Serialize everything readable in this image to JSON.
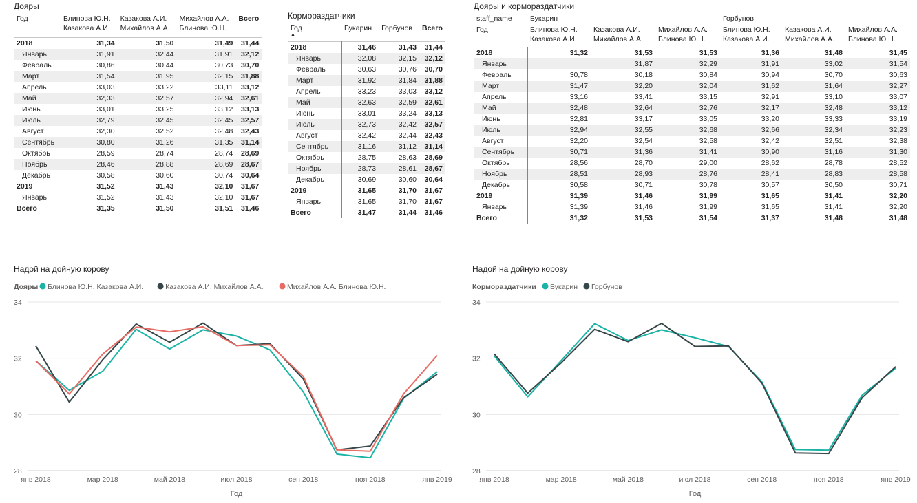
{
  "m1": {
    "title": "Дояры",
    "col_header": "Год",
    "columns": [
      "Блинова Ю.Н.\nКазакова А.И.",
      "Казакова А.И.\nМихайлов А.А.",
      "Михайлов А.А.\nБлинова Ю.Н."
    ],
    "total_label": "Всего",
    "rows": [
      {
        "label": "2018",
        "level": 0,
        "values": [
          "31,34",
          "31,50",
          "31,49"
        ],
        "total": "31,44"
      },
      {
        "label": "Январь",
        "level": 1,
        "values": [
          "31,91",
          "32,44",
          "31,91"
        ],
        "total": "32,12"
      },
      {
        "label": "Февраль",
        "level": 1,
        "values": [
          "30,86",
          "30,44",
          "30,73"
        ],
        "total": "30,70"
      },
      {
        "label": "Март",
        "level": 1,
        "values": [
          "31,54",
          "31,95",
          "32,15"
        ],
        "total": "31,88"
      },
      {
        "label": "Апрель",
        "level": 1,
        "values": [
          "33,03",
          "33,22",
          "33,11"
        ],
        "total": "33,12"
      },
      {
        "label": "Май",
        "level": 1,
        "values": [
          "32,33",
          "32,57",
          "32,94"
        ],
        "total": "32,61"
      },
      {
        "label": "Июнь",
        "level": 1,
        "values": [
          "33,01",
          "33,25",
          "33,12"
        ],
        "total": "33,13"
      },
      {
        "label": "Июль",
        "level": 1,
        "values": [
          "32,79",
          "32,45",
          "32,45"
        ],
        "total": "32,57"
      },
      {
        "label": "Август",
        "level": 1,
        "values": [
          "32,30",
          "32,52",
          "32,48"
        ],
        "total": "32,43"
      },
      {
        "label": "Сентябрь",
        "level": 1,
        "values": [
          "30,80",
          "31,26",
          "31,35"
        ],
        "total": "31,14"
      },
      {
        "label": "Октябрь",
        "level": 1,
        "values": [
          "28,59",
          "28,74",
          "28,74"
        ],
        "total": "28,69"
      },
      {
        "label": "Ноябрь",
        "level": 1,
        "values": [
          "28,46",
          "28,88",
          "28,69"
        ],
        "total": "28,67"
      },
      {
        "label": "Декабрь",
        "level": 1,
        "values": [
          "30,58",
          "30,60",
          "30,74"
        ],
        "total": "30,64"
      },
      {
        "label": "2019",
        "level": 0,
        "values": [
          "31,52",
          "31,43",
          "32,10"
        ],
        "total": "31,67"
      },
      {
        "label": "Январь",
        "level": 1,
        "values": [
          "31,52",
          "31,43",
          "32,10"
        ],
        "total": "31,67"
      },
      {
        "label": "Всего",
        "level": 2,
        "values": [
          "31,35",
          "31,50",
          "31,51"
        ],
        "total": "31,46"
      }
    ]
  },
  "m2": {
    "title": "Кормораздатчики",
    "col_header": "Год",
    "sort_indicator": "▲",
    "columns": [
      "Букарин",
      "Горбунов"
    ],
    "total_label": "Всего",
    "rows": [
      {
        "label": "2018",
        "level": 0,
        "values": [
          "31,46",
          "31,43"
        ],
        "total": "31,44"
      },
      {
        "label": "Январь",
        "level": 1,
        "values": [
          "32,08",
          "32,15"
        ],
        "total": "32,12"
      },
      {
        "label": "Февраль",
        "level": 1,
        "values": [
          "30,63",
          "30,76"
        ],
        "total": "30,70"
      },
      {
        "label": "Март",
        "level": 1,
        "values": [
          "31,92",
          "31,84"
        ],
        "total": "31,88"
      },
      {
        "label": "Апрель",
        "level": 1,
        "values": [
          "33,23",
          "33,03"
        ],
        "total": "33,12"
      },
      {
        "label": "Май",
        "level": 1,
        "values": [
          "32,63",
          "32,59"
        ],
        "total": "32,61"
      },
      {
        "label": "Июнь",
        "level": 1,
        "values": [
          "33,01",
          "33,24"
        ],
        "total": "33,13"
      },
      {
        "label": "Июль",
        "level": 1,
        "values": [
          "32,73",
          "32,42"
        ],
        "total": "32,57"
      },
      {
        "label": "Август",
        "level": 1,
        "values": [
          "32,42",
          "32,44"
        ],
        "total": "32,43"
      },
      {
        "label": "Сентябрь",
        "level": 1,
        "values": [
          "31,16",
          "31,12"
        ],
        "total": "31,14"
      },
      {
        "label": "Октябрь",
        "level": 1,
        "values": [
          "28,75",
          "28,63"
        ],
        "total": "28,69"
      },
      {
        "label": "Ноябрь",
        "level": 1,
        "values": [
          "28,73",
          "28,61"
        ],
        "total": "28,67"
      },
      {
        "label": "Декабрь",
        "level": 1,
        "values": [
          "30,69",
          "30,60"
        ],
        "total": "30,64"
      },
      {
        "label": "2019",
        "level": 0,
        "values": [
          "31,65",
          "31,70"
        ],
        "total": "31,67"
      },
      {
        "label": "Январь",
        "level": 1,
        "values": [
          "31,65",
          "31,70"
        ],
        "total": "31,67"
      },
      {
        "label": "Всего",
        "level": 2,
        "values": [
          "31,47",
          "31,44"
        ],
        "total": "31,46"
      }
    ]
  },
  "m3": {
    "title": "Дояры и кормораздатчики",
    "row_header_top": "staff_name",
    "col_header": "Год",
    "group1": "Букарин",
    "group2": "Горбунов",
    "columns": [
      "Блинова Ю.Н.\nКазакова А.И.",
      "Казакова А.И.\nМихайлов А.А.",
      "Михайлов А.А.\nБлинова Ю.Н.",
      "Блинова Ю.Н.\nКазакова А.И.",
      "Казакова А.И.\nМихайлов А.А.",
      "Михайлов А.А.\nБлинова Ю.Н."
    ],
    "rows": [
      {
        "label": "2018",
        "level": 0,
        "values": [
          "31,32",
          "31,53",
          "31,53",
          "31,36",
          "31,48",
          "31,45"
        ]
      },
      {
        "label": "Январь",
        "level": 1,
        "values": [
          "",
          "31,87",
          "32,29",
          "31,91",
          "33,02",
          "31,54"
        ]
      },
      {
        "label": "Февраль",
        "level": 1,
        "values": [
          "30,78",
          "30,18",
          "30,84",
          "30,94",
          "30,70",
          "30,63"
        ]
      },
      {
        "label": "Март",
        "level": 1,
        "values": [
          "31,47",
          "32,20",
          "32,04",
          "31,62",
          "31,64",
          "32,27"
        ]
      },
      {
        "label": "Апрель",
        "level": 1,
        "values": [
          "33,16",
          "33,41",
          "33,15",
          "32,91",
          "33,10",
          "33,07"
        ]
      },
      {
        "label": "Май",
        "level": 1,
        "values": [
          "32,48",
          "32,64",
          "32,76",
          "32,17",
          "32,48",
          "33,12"
        ]
      },
      {
        "label": "Июнь",
        "level": 1,
        "values": [
          "32,81",
          "33,17",
          "33,05",
          "33,20",
          "33,33",
          "33,19"
        ]
      },
      {
        "label": "Июль",
        "level": 1,
        "values": [
          "32,94",
          "32,55",
          "32,68",
          "32,66",
          "32,34",
          "32,23"
        ]
      },
      {
        "label": "Август",
        "level": 1,
        "values": [
          "32,20",
          "32,54",
          "32,58",
          "32,42",
          "32,51",
          "32,38"
        ]
      },
      {
        "label": "Сентябрь",
        "level": 1,
        "values": [
          "30,71",
          "31,36",
          "31,41",
          "30,90",
          "31,16",
          "31,30"
        ]
      },
      {
        "label": "Октябрь",
        "level": 1,
        "values": [
          "28,56",
          "28,70",
          "29,00",
          "28,62",
          "28,78",
          "28,52"
        ]
      },
      {
        "label": "Ноябрь",
        "level": 1,
        "values": [
          "28,51",
          "28,93",
          "28,76",
          "28,41",
          "28,83",
          "28,58"
        ]
      },
      {
        "label": "Декабрь",
        "level": 1,
        "values": [
          "30,58",
          "30,71",
          "30,78",
          "30,57",
          "30,50",
          "30,71"
        ]
      },
      {
        "label": "2019",
        "level": 0,
        "values": [
          "31,39",
          "31,46",
          "31,99",
          "31,65",
          "31,41",
          "32,20"
        ]
      },
      {
        "label": "Январь",
        "level": 1,
        "values": [
          "31,39",
          "31,46",
          "31,99",
          "31,65",
          "31,41",
          "32,20"
        ]
      },
      {
        "label": "Всего",
        "level": 2,
        "values": [
          "31,32",
          "31,53",
          "31,54",
          "31,37",
          "31,48",
          "31,48"
        ]
      }
    ]
  },
  "chart_data": [
    {
      "type": "line",
      "title": "Надой на дойную корову",
      "legend_title": "Дояры",
      "xlabel": "Год",
      "ylabel": "",
      "ylim": [
        28,
        34
      ],
      "yticks": [
        28,
        30,
        32,
        34
      ],
      "x": [
        "янв 2018",
        "фев 2018",
        "мар 2018",
        "апр 2018",
        "май 2018",
        "июн 2018",
        "июл 2018",
        "авг 2018",
        "сен 2018",
        "окт 2018",
        "ноя 2018",
        "дек 2018",
        "янв 2019"
      ],
      "xtick_labels": [
        "янв 2018",
        "мар 2018",
        "май 2018",
        "июл 2018",
        "сен 2018",
        "ноя 2018",
        "янв 2019"
      ],
      "grid": true,
      "legend_position": "top-left",
      "series": [
        {
          "name": "Блинова Ю.Н. Казакова А.И.",
          "color": "#1ab3a6",
          "values": [
            31.91,
            30.86,
            31.54,
            33.03,
            32.33,
            33.01,
            32.79,
            32.3,
            30.8,
            28.59,
            28.46,
            30.58,
            31.52
          ]
        },
        {
          "name": "Казакова А.И. Михайлов А.А.",
          "color": "#374649",
          "values": [
            32.44,
            30.44,
            31.95,
            33.22,
            32.57,
            33.25,
            32.45,
            32.52,
            31.26,
            28.74,
            28.88,
            30.6,
            31.43
          ]
        },
        {
          "name": "Михайлов А.А. Блинова Ю.Н.",
          "color": "#e66c64",
          "values": [
            31.91,
            30.73,
            32.15,
            33.11,
            32.94,
            33.12,
            32.45,
            32.48,
            31.35,
            28.74,
            28.69,
            30.74,
            32.1
          ]
        }
      ]
    },
    {
      "type": "line",
      "title": "Надой на дойную корову",
      "legend_title": "Кормораздатчики",
      "xlabel": "Год",
      "ylabel": "",
      "ylim": [
        28,
        34
      ],
      "yticks": [
        28,
        30,
        32,
        34
      ],
      "x": [
        "янв 2018",
        "фев 2018",
        "мар 2018",
        "апр 2018",
        "май 2018",
        "июн 2018",
        "июл 2018",
        "авг 2018",
        "сен 2018",
        "окт 2018",
        "ноя 2018",
        "дек 2018",
        "янв 2019"
      ],
      "xtick_labels": [
        "янв 2018",
        "мар 2018",
        "май 2018",
        "июл 2018",
        "сен 2018",
        "ноя 2018",
        "янв 2019"
      ],
      "grid": true,
      "legend_position": "top-left",
      "series": [
        {
          "name": "Букарин",
          "color": "#1ab3a6",
          "values": [
            32.08,
            30.63,
            31.92,
            33.23,
            32.63,
            33.01,
            32.73,
            32.42,
            31.16,
            28.75,
            28.73,
            30.69,
            31.65
          ]
        },
        {
          "name": "Горбунов",
          "color": "#374649",
          "values": [
            32.15,
            30.76,
            31.84,
            33.03,
            32.59,
            33.24,
            32.42,
            32.44,
            31.12,
            28.63,
            28.61,
            30.6,
            31.7
          ]
        }
      ]
    }
  ]
}
